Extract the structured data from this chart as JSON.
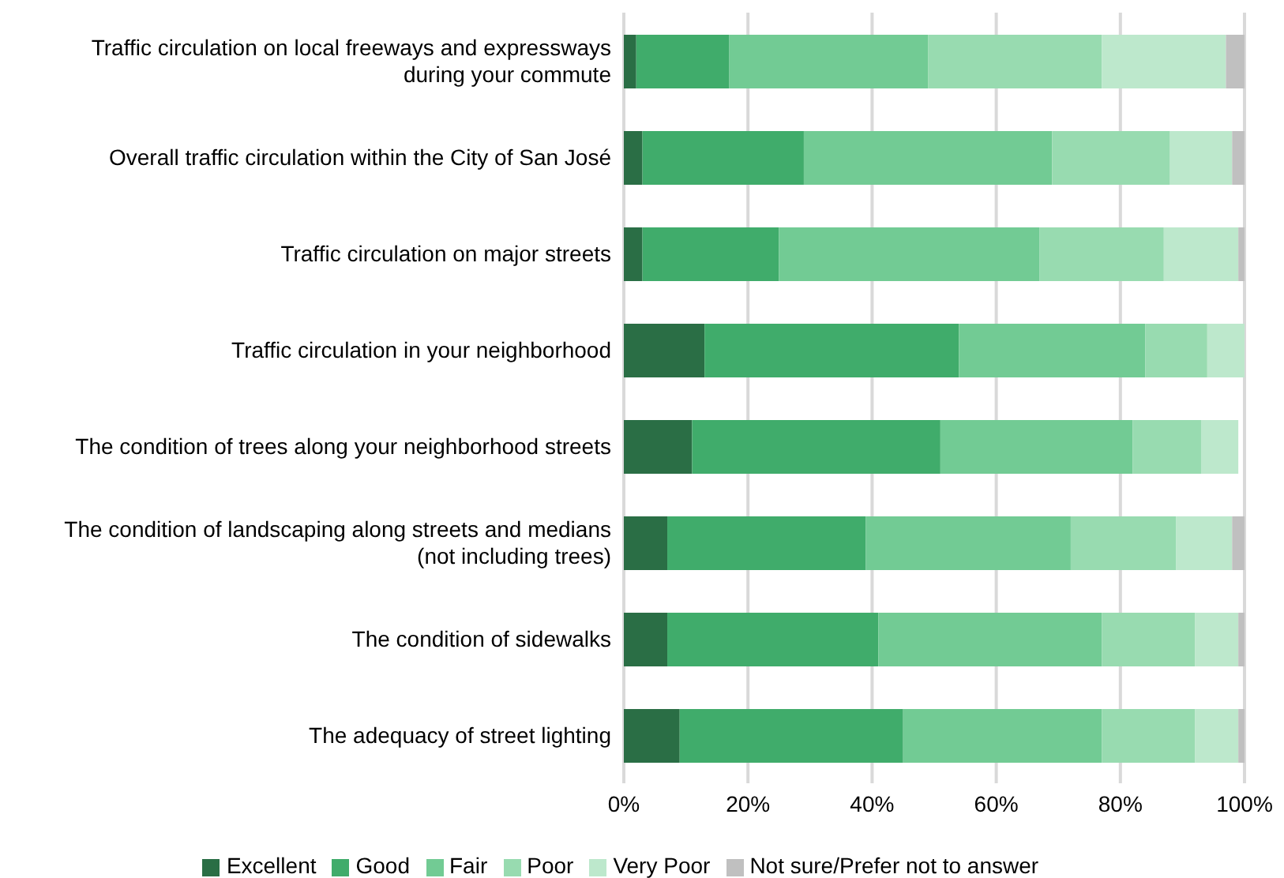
{
  "chart_data": {
    "type": "bar",
    "orientation": "horizontal",
    "stacked": true,
    "categories": [
      "Traffic circulation on local freeways and expressways\nduring your commute",
      "Overall traffic circulation within the City of San José",
      "Traffic circulation on major streets",
      "Traffic circulation in your neighborhood",
      "The condition of trees along your neighborhood streets",
      "The condition of landscaping along streets and medians\n(not including trees)",
      "The condition of sidewalks",
      "The adequacy of street lighting"
    ],
    "series": [
      {
        "name": "Excellent",
        "color": "#2a6e45",
        "values": [
          2,
          3,
          3,
          13,
          11,
          7,
          7,
          9
        ]
      },
      {
        "name": "Good",
        "color": "#40ac6b",
        "values": [
          15,
          26,
          22,
          41,
          40,
          32,
          34,
          36
        ]
      },
      {
        "name": "Fair",
        "color": "#72cb94",
        "values": [
          32,
          40,
          42,
          30,
          31,
          33,
          36,
          32
        ]
      },
      {
        "name": "Poor",
        "color": "#98dbb0",
        "values": [
          28,
          19,
          20,
          10,
          11,
          17,
          15,
          15
        ]
      },
      {
        "name": "Very Poor",
        "color": "#bde8cc",
        "values": [
          20,
          10,
          12,
          6,
          6,
          9,
          7,
          7
        ]
      },
      {
        "name": "Not sure/Prefer not to answer",
        "color": "#c0c0c0",
        "values": [
          3,
          2,
          1,
          0,
          0,
          2,
          1,
          1
        ]
      }
    ],
    "xlim": [
      0,
      100
    ],
    "xticks": [
      {
        "value": 0,
        "label": "0%"
      },
      {
        "value": 20,
        "label": "20%"
      },
      {
        "value": 40,
        "label": "40%"
      },
      {
        "value": 60,
        "label": "60%"
      },
      {
        "value": 80,
        "label": "80%"
      },
      {
        "value": 100,
        "label": "100%"
      }
    ],
    "grid": "x",
    "legend": "bottom"
  }
}
